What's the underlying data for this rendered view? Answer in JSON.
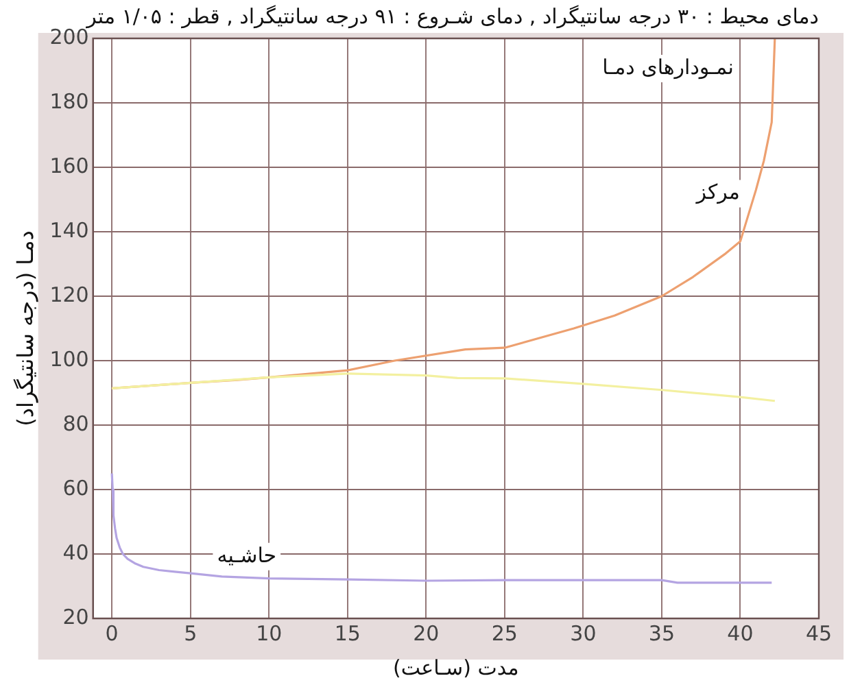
{
  "chart_data": {
    "type": "line",
    "title": "دمای محیط : ۳۰ درجه سانتیگراد , دمای شـروع : ۹۱ درجه سانتیگراد , قطر : ۱/۰۵ متر",
    "xlabel": "مدت (سـاعت)",
    "ylabel": "دمـا (درجه سانتیگراد)",
    "annotations": [
      "نمـودارهای دمـا",
      {
        "text": "مرکز",
        "x": 40.5,
        "y": 145
      },
      {
        "text": "حاشـیه",
        "x": 11,
        "y": 32.4
      }
    ],
    "series": [
      {
        "color": "#f3f0a0",
        "x": [
          0,
          5,
          10,
          15,
          20,
          22,
          25,
          30,
          35,
          40,
          42.2
        ],
        "values": [
          91.4,
          93.1,
          94.8,
          96,
          95.4,
          94.6,
          94.5,
          92.8,
          90.9,
          88.7,
          87.5
        ]
      },
      {
        "color": "#eda070",
        "x": [
          0,
          5,
          8,
          10,
          15,
          18,
          22.5,
          25,
          29.4,
          32,
          35,
          37,
          39,
          40,
          41,
          41.5,
          42,
          42.2
        ],
        "values": [
          91.4,
          93.1,
          94,
          94.8,
          97,
          100,
          103.5,
          104,
          110,
          114,
          120,
          126,
          133,
          137,
          153,
          162,
          174,
          200
        ]
      },
      {
        "color": "#b4a4e2",
        "x": [
          0,
          0.05,
          0.1,
          0.2,
          0.3,
          0.5,
          0.7,
          1,
          1.5,
          2,
          3,
          4,
          5,
          7,
          10,
          15,
          20,
          25,
          30,
          35,
          36,
          42
        ],
        "values": [
          65,
          60,
          52,
          48,
          45,
          42,
          40,
          38.5,
          37,
          36,
          35,
          34.5,
          34,
          33,
          32.4,
          32.1,
          31.7,
          31.9,
          31.9,
          31.9,
          31.1,
          31.1
        ]
      }
    ],
    "xlim": [
      -1.2,
      45
    ],
    "ylim": [
      20,
      200
    ],
    "xticks": [
      0,
      5,
      10,
      15,
      20,
      25,
      30,
      35,
      40,
      45
    ],
    "yticks": [
      20,
      40,
      60,
      80,
      100,
      120,
      140,
      160,
      180,
      200
    ],
    "grid": true,
    "legend": false,
    "line_style": "solid",
    "marker": "none"
  }
}
